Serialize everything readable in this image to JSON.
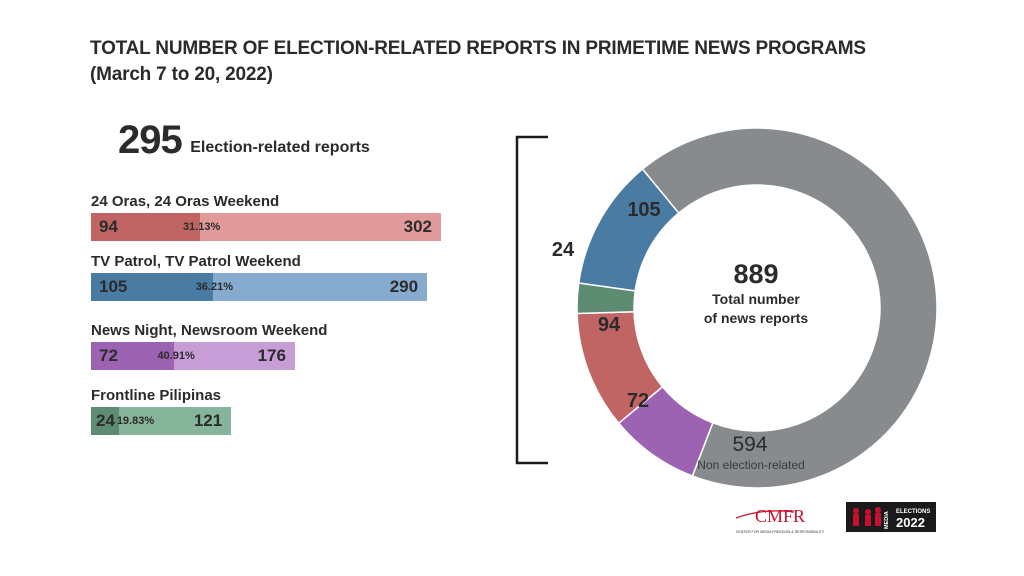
{
  "title_line1": "TOTAL NUMBER OF  ELECTION-RELATED REPORTS IN PRIMETIME NEWS PROGRAMS",
  "title_line2": "(March 7 to 20, 2022)",
  "summary": {
    "number": "295",
    "label": "Election-related reports"
  },
  "programs": [
    {
      "name": "24 Oras, 24 Oras Weekend",
      "election": "94",
      "total": "302",
      "percent": "31.13%",
      "dark": "#c06464",
      "light": "#e09a9a"
    },
    {
      "name": "TV Patrol, TV Patrol Weekend",
      "election": "105",
      "total": "290",
      "percent": "36.21%",
      "dark": "#4a7ba3",
      "light": "#86abcf"
    },
    {
      "name": "News Night, Newsroom Weekend",
      "election": "72",
      "total": "176",
      "percent": "40.91%",
      "dark": "#9c63b3",
      "light": "#c79dd6"
    },
    {
      "name": "Frontline Pilipinas",
      "election": "24",
      "total": "121",
      "percent": "19.83%",
      "dark": "#5e8c72",
      "light": "#86b59b"
    }
  ],
  "donut": {
    "center_number": "889",
    "center_line1": "Total number",
    "center_line2": "of news reports",
    "non_election_value": "594",
    "non_election_label": "Non election-related"
  },
  "logos": {
    "cmfr": "CMFR",
    "cmfr_sub": "CENTER FOR MEDIA FREEDOM & RESPONSIBILITY",
    "media": "MEDIA",
    "elections": "ELECTIONS",
    "year": "2022"
  },
  "colors": {
    "non_election": "#888b8d",
    "text": "#2b2b2b",
    "cmfr_red": "#c8102e"
  },
  "chart_data": [
    {
      "type": "bar",
      "orientation": "horizontal",
      "stacked": true,
      "title": "TOTAL NUMBER OF  ELECTION-RELATED REPORTS IN PRIMETIME NEWS PROGRAMS",
      "subtitle": "(March 7 to 20, 2022)",
      "categories": [
        "24 Oras, 24 Oras Weekend",
        "TV Patrol, TV Patrol Weekend",
        "News Night, Newsroom Weekend",
        "Frontline Pilipinas"
      ],
      "series": [
        {
          "values": [
            94,
            105,
            72,
            24
          ]
        },
        {
          "values": [
            302,
            290,
            176,
            121
          ]
        }
      ],
      "annotations": [
        "31.13%",
        "36.21%",
        "40.91%",
        "19.83%"
      ]
    },
    {
      "type": "pie",
      "donut": true,
      "categories": [
        "105",
        "24",
        "94",
        "72",
        "Non election-related"
      ],
      "values": [
        105,
        24,
        94,
        72,
        594
      ],
      "colors": [
        "#4a7ba3",
        "#5e8c72",
        "#c06464",
        "#9c63b3",
        "#888b8d"
      ],
      "center_label": "889 Total number of news reports"
    }
  ]
}
